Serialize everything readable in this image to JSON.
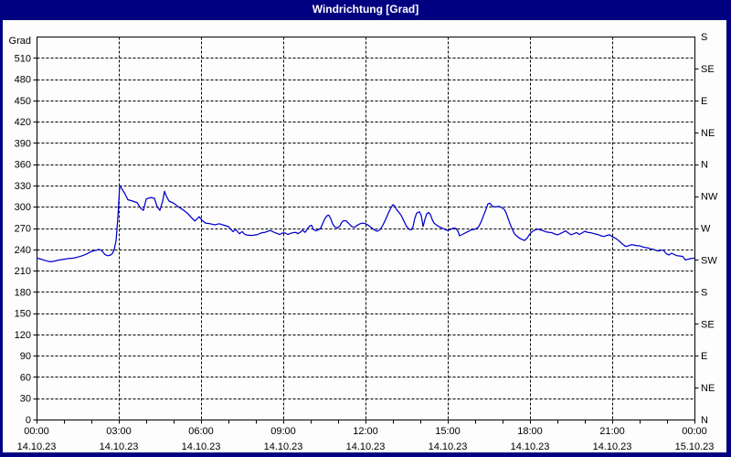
{
  "window": {
    "title": "Windrichtung [Grad]"
  },
  "colors": {
    "frame": "#000080",
    "panel": "#fdfdfd",
    "title_text": "#ffffff",
    "axis_and_grid": "#000000",
    "series_line": "#0000cc"
  },
  "chart_data": {
    "type": "line",
    "title": "Windrichtung [Grad]",
    "y_left_axis_title": "Grad",
    "ylim": [
      0,
      540
    ],
    "grid": "dashed",
    "legend": "none",
    "y_left_ticks": [
      0,
      30,
      60,
      90,
      120,
      150,
      180,
      210,
      240,
      270,
      300,
      330,
      360,
      390,
      420,
      450,
      480,
      510
    ],
    "y_right_ticks": [
      {
        "deg": 0,
        "label": "N"
      },
      {
        "deg": 45,
        "label": "NE"
      },
      {
        "deg": 90,
        "label": "E"
      },
      {
        "deg": 135,
        "label": "SE"
      },
      {
        "deg": 180,
        "label": "S"
      },
      {
        "deg": 225,
        "label": "SW"
      },
      {
        "deg": 270,
        "label": "W"
      },
      {
        "deg": 315,
        "label": "NW"
      },
      {
        "deg": 360,
        "label": "N"
      },
      {
        "deg": 405,
        "label": "NE"
      },
      {
        "deg": 450,
        "label": "E"
      },
      {
        "deg": 495,
        "label": "SE"
      },
      {
        "deg": 540,
        "label": "S"
      }
    ],
    "x_range_minutes": [
      0,
      1440
    ],
    "x_minor_step_minutes": 60,
    "x_major_ticks": [
      {
        "minutes": 0,
        "time": "00:00",
        "date": "14.10.23"
      },
      {
        "minutes": 180,
        "time": "03:00",
        "date": "14.10.23"
      },
      {
        "minutes": 360,
        "time": "06:00",
        "date": "14.10.23"
      },
      {
        "minutes": 540,
        "time": "09:00",
        "date": "14.10.23"
      },
      {
        "minutes": 720,
        "time": "12:00",
        "date": "14.10.23"
      },
      {
        "minutes": 900,
        "time": "15:00",
        "date": "14.10.23"
      },
      {
        "minutes": 1080,
        "time": "18:00",
        "date": "14.10.23"
      },
      {
        "minutes": 1260,
        "time": "21:00",
        "date": "14.10.23"
      },
      {
        "minutes": 1440,
        "time": "00:00",
        "date": "15.10.23"
      }
    ],
    "series": [
      {
        "name": "Windrichtung",
        "color": "#0000cc",
        "points": [
          [
            0,
            228
          ],
          [
            10,
            226
          ],
          [
            20,
            224
          ],
          [
            30,
            222.5
          ],
          [
            40,
            223.5
          ],
          [
            50,
            225
          ],
          [
            60,
            226
          ],
          [
            70,
            227
          ],
          [
            80,
            227.5
          ],
          [
            90,
            229
          ],
          [
            100,
            231
          ],
          [
            110,
            233.5
          ],
          [
            120,
            237
          ],
          [
            130,
            238.5
          ],
          [
            136,
            240
          ],
          [
            142,
            238.5
          ],
          [
            150,
            232.5
          ],
          [
            156,
            231
          ],
          [
            162,
            232
          ],
          [
            166,
            234
          ],
          [
            170,
            240
          ],
          [
            174,
            252
          ],
          [
            178,
            285
          ],
          [
            182,
            330
          ],
          [
            186,
            326
          ],
          [
            192,
            320
          ],
          [
            200,
            310
          ],
          [
            210,
            308
          ],
          [
            220,
            306
          ],
          [
            228,
            298
          ],
          [
            234,
            295
          ],
          [
            240,
            311
          ],
          [
            250,
            313
          ],
          [
            258,
            312
          ],
          [
            264,
            300
          ],
          [
            270,
            295
          ],
          [
            276,
            308
          ],
          [
            280,
            322
          ],
          [
            284,
            315
          ],
          [
            290,
            308
          ],
          [
            300,
            305
          ],
          [
            310,
            300
          ],
          [
            320,
            296
          ],
          [
            330,
            291
          ],
          [
            340,
            284
          ],
          [
            346,
            280
          ],
          [
            350,
            282
          ],
          [
            356,
            286
          ],
          [
            362,
            281
          ],
          [
            370,
            277
          ],
          [
            380,
            276
          ],
          [
            390,
            274.5
          ],
          [
            400,
            276
          ],
          [
            410,
            274
          ],
          [
            420,
            272
          ],
          [
            430,
            265
          ],
          [
            436,
            268
          ],
          [
            444,
            262
          ],
          [
            450,
            265
          ],
          [
            456,
            261
          ],
          [
            462,
            260
          ],
          [
            470,
            259.5
          ],
          [
            476,
            260
          ],
          [
            482,
            260.5
          ],
          [
            488,
            262
          ],
          [
            494,
            263.5
          ],
          [
            500,
            264
          ],
          [
            506,
            265.5
          ],
          [
            512,
            266.5
          ],
          [
            520,
            264
          ],
          [
            526,
            262.5
          ],
          [
            532,
            261
          ],
          [
            538,
            263
          ],
          [
            544,
            263
          ],
          [
            550,
            261
          ],
          [
            556,
            262.5
          ],
          [
            562,
            263.5
          ],
          [
            568,
            264
          ],
          [
            572,
            262
          ],
          [
            578,
            264.5
          ],
          [
            582,
            267
          ],
          [
            588,
            264
          ],
          [
            594,
            270
          ],
          [
            598,
            273
          ],
          [
            602,
            274
          ],
          [
            606,
            268
          ],
          [
            612,
            266
          ],
          [
            618,
            268
          ],
          [
            622,
            270
          ],
          [
            628,
            279
          ],
          [
            632,
            284
          ],
          [
            636,
            287.5
          ],
          [
            640,
            288
          ],
          [
            644,
            283
          ],
          [
            648,
            276
          ],
          [
            652,
            272
          ],
          [
            658,
            270
          ],
          [
            664,
            273
          ],
          [
            668,
            278
          ],
          [
            672,
            280.5
          ],
          [
            678,
            280
          ],
          [
            684,
            276
          ],
          [
            690,
            272
          ],
          [
            696,
            271
          ],
          [
            702,
            274
          ],
          [
            708,
            276
          ],
          [
            714,
            277
          ],
          [
            720,
            276
          ],
          [
            726,
            274
          ],
          [
            734,
            270
          ],
          [
            740,
            267
          ],
          [
            746,
            265.5
          ],
          [
            752,
            268
          ],
          [
            758,
            274
          ],
          [
            764,
            282
          ],
          [
            770,
            291
          ],
          [
            776,
            299
          ],
          [
            780,
            303
          ],
          [
            784,
            301
          ],
          [
            788,
            296
          ],
          [
            792,
            293
          ],
          [
            798,
            288
          ],
          [
            804,
            280
          ],
          [
            810,
            272
          ],
          [
            816,
            268
          ],
          [
            820,
            267.5
          ],
          [
            824,
            272
          ],
          [
            828,
            284
          ],
          [
            832,
            291
          ],
          [
            838,
            293
          ],
          [
            842,
            288
          ],
          [
            846,
            272
          ],
          [
            850,
            282
          ],
          [
            854,
            290
          ],
          [
            858,
            292
          ],
          [
            862,
            289
          ],
          [
            866,
            282
          ],
          [
            870,
            277
          ],
          [
            876,
            274
          ],
          [
            882,
            271.5
          ],
          [
            888,
            270
          ],
          [
            894,
            268
          ],
          [
            900,
            266.5
          ],
          [
            906,
            268
          ],
          [
            912,
            270
          ],
          [
            918,
            269.5
          ],
          [
            922,
            266
          ],
          [
            926,
            259
          ],
          [
            932,
            261
          ],
          [
            938,
            263
          ],
          [
            944,
            265
          ],
          [
            950,
            267
          ],
          [
            956,
            268
          ],
          [
            962,
            269
          ],
          [
            968,
            272
          ],
          [
            974,
            280
          ],
          [
            978,
            287
          ],
          [
            984,
            297
          ],
          [
            988,
            304
          ],
          [
            992,
            305
          ],
          [
            996,
            302
          ],
          [
            1000,
            300
          ],
          [
            1006,
            300
          ],
          [
            1012,
            300.5
          ],
          [
            1018,
            299
          ],
          [
            1024,
            296
          ],
          [
            1028,
            291
          ],
          [
            1034,
            280
          ],
          [
            1040,
            270
          ],
          [
            1046,
            262
          ],
          [
            1052,
            258
          ],
          [
            1058,
            255.5
          ],
          [
            1064,
            253.5
          ],
          [
            1068,
            252.5
          ],
          [
            1074,
            256
          ],
          [
            1080,
            262
          ],
          [
            1086,
            265.5
          ],
          [
            1092,
            267.5
          ],
          [
            1098,
            268.5
          ],
          [
            1104,
            267
          ],
          [
            1110,
            266
          ],
          [
            1116,
            264.5
          ],
          [
            1122,
            264
          ],
          [
            1128,
            263.5
          ],
          [
            1134,
            261.5
          ],
          [
            1140,
            260.5
          ],
          [
            1146,
            262
          ],
          [
            1152,
            264
          ],
          [
            1158,
            266
          ],
          [
            1164,
            263
          ],
          [
            1170,
            260.5
          ],
          [
            1176,
            262
          ],
          [
            1182,
            263.5
          ],
          [
            1188,
            261
          ],
          [
            1194,
            263
          ],
          [
            1200,
            265.5
          ],
          [
            1206,
            264
          ],
          [
            1212,
            263.5
          ],
          [
            1218,
            262.5
          ],
          [
            1224,
            261.5
          ],
          [
            1230,
            260.5
          ],
          [
            1236,
            259
          ],
          [
            1242,
            258
          ],
          [
            1248,
            259.5
          ],
          [
            1254,
            260.5
          ],
          [
            1260,
            258
          ],
          [
            1266,
            256
          ],
          [
            1272,
            253.5
          ],
          [
            1278,
            250
          ],
          [
            1284,
            246.5
          ],
          [
            1290,
            244
          ],
          [
            1296,
            245
          ],
          [
            1302,
            246.5
          ],
          [
            1308,
            246
          ],
          [
            1314,
            245
          ],
          [
            1320,
            245
          ],
          [
            1326,
            243.5
          ],
          [
            1332,
            242.5
          ],
          [
            1338,
            242
          ],
          [
            1344,
            240.5
          ],
          [
            1350,
            240
          ],
          [
            1356,
            238.5
          ],
          [
            1360,
            237.5
          ],
          [
            1366,
            238.5
          ],
          [
            1372,
            239
          ],
          [
            1378,
            234
          ],
          [
            1384,
            232
          ],
          [
            1390,
            234.5
          ],
          [
            1396,
            232.5
          ],
          [
            1402,
            231
          ],
          [
            1408,
            230.5
          ],
          [
            1414,
            230
          ],
          [
            1420,
            225
          ],
          [
            1426,
            226
          ],
          [
            1432,
            227
          ],
          [
            1440,
            227.5
          ]
        ]
      }
    ]
  }
}
